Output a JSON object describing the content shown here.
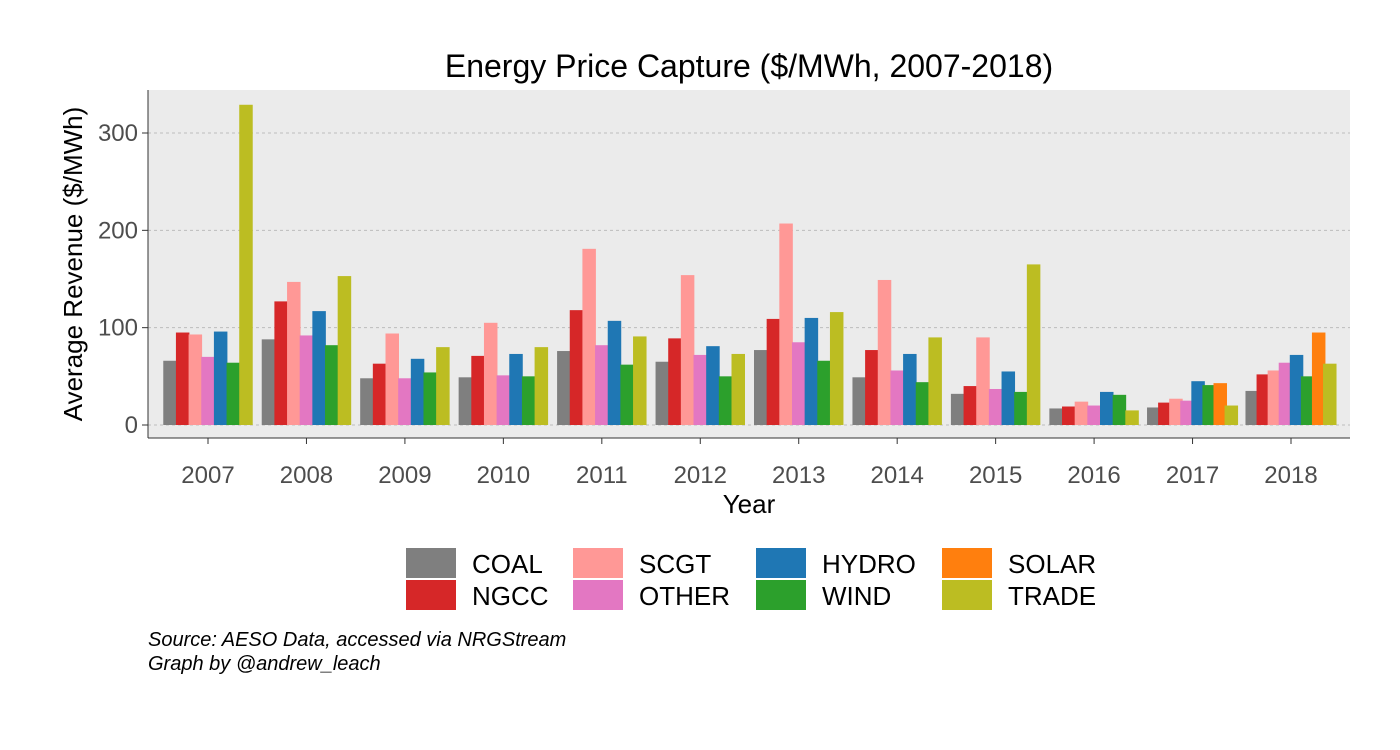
{
  "chart_data": {
    "type": "bar",
    "title": "Energy Price Capture ($/MWh, 2007-2018)",
    "xlabel": "Year",
    "ylabel": "Average Revenue ($/MWh)",
    "ylim": [
      0,
      345
    ],
    "yticks": [
      0,
      100,
      200,
      300
    ],
    "grid": true,
    "legend_position": "bottom",
    "categories": [
      "2007",
      "2008",
      "2009",
      "2010",
      "2011",
      "2012",
      "2013",
      "2014",
      "2015",
      "2016",
      "2017",
      "2018"
    ],
    "series": [
      {
        "name": "COAL",
        "color": "#7f7f7f",
        "values": [
          66,
          88,
          48,
          49,
          76,
          65,
          77,
          49,
          32,
          17,
          18,
          35
        ]
      },
      {
        "name": "NGCC",
        "color": "#d62728",
        "values": [
          95,
          127,
          63,
          71,
          118,
          89,
          109,
          77,
          40,
          19,
          23,
          52
        ]
      },
      {
        "name": "SCGT",
        "color": "#ff9896",
        "values": [
          93,
          147,
          94,
          105,
          181,
          154,
          207,
          149,
          90,
          24,
          27,
          56
        ]
      },
      {
        "name": "OTHER",
        "color": "#e377c2",
        "values": [
          70,
          92,
          48,
          51,
          82,
          72,
          85,
          56,
          37,
          20,
          25,
          64
        ]
      },
      {
        "name": "HYDRO",
        "color": "#1f77b4",
        "values": [
          96,
          117,
          68,
          73,
          107,
          81,
          110,
          73,
          55,
          34,
          45,
          72
        ]
      },
      {
        "name": "WIND",
        "color": "#2ca02c",
        "values": [
          64,
          82,
          54,
          50,
          62,
          50,
          66,
          44,
          34,
          31,
          41,
          50
        ]
      },
      {
        "name": "SOLAR",
        "color": "#ff7f0e",
        "values": [
          null,
          null,
          null,
          null,
          null,
          null,
          null,
          null,
          null,
          null,
          43,
          95
        ]
      },
      {
        "name": "TRADE",
        "color": "#bcbd22",
        "values": [
          329,
          153,
          80,
          80,
          91,
          73,
          116,
          90,
          165,
          15,
          20,
          63
        ]
      }
    ],
    "legend_order": [
      "COAL",
      "SCGT",
      "HYDRO",
      "SOLAR",
      "NGCC",
      "OTHER",
      "WIND",
      "TRADE"
    ],
    "caption": [
      "Source: AESO Data, accessed via NRGStream",
      "Graph by @andrew_leach"
    ]
  }
}
